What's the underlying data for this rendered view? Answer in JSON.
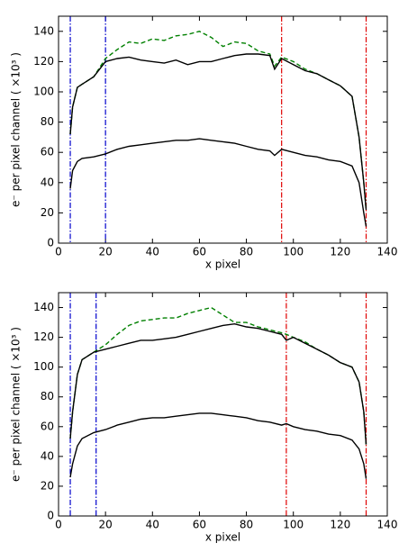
{
  "chart_data": [
    {
      "type": "line",
      "xlabel": "x pixel",
      "ylabel": "e⁻ per pixel channel ( ×10³ )",
      "x": [
        5,
        6,
        8,
        10,
        15,
        20,
        25,
        30,
        35,
        40,
        45,
        50,
        55,
        60,
        65,
        70,
        75,
        80,
        85,
        90,
        92,
        95,
        100,
        105,
        110,
        115,
        120,
        125,
        128,
        130,
        131
      ],
      "series": [
        {
          "color": "#008000",
          "dash": true,
          "values": [
            72,
            90,
            103,
            105,
            110,
            122,
            128,
            133,
            132,
            135,
            134,
            137,
            138,
            140,
            136,
            130,
            133,
            132,
            127,
            125,
            117,
            123,
            120,
            115,
            112,
            108,
            104,
            97,
            70,
            40,
            22
          ]
        },
        {
          "color": "#000000",
          "values": [
            72,
            90,
            103,
            105,
            110,
            120,
            122,
            123,
            121,
            120,
            119,
            121,
            118,
            120,
            120,
            122,
            124,
            125,
            125,
            124,
            115,
            122,
            118,
            114,
            112,
            108,
            104,
            97,
            70,
            40,
            22
          ]
        },
        {
          "color": "#000000",
          "values": [
            36,
            48,
            54,
            56,
            57,
            59,
            62,
            64,
            65,
            66,
            67,
            68,
            68,
            69,
            68,
            67,
            66,
            64,
            62,
            61,
            58,
            62,
            60,
            58,
            57,
            55,
            54,
            51,
            40,
            20,
            11
          ]
        }
      ],
      "vlines": [
        {
          "x": 5,
          "color": "#0000cc"
        },
        {
          "x": 20,
          "color": "#0000cc"
        },
        {
          "x": 95,
          "color": "#e00000"
        },
        {
          "x": 131,
          "color": "#e00000"
        }
      ],
      "xlim": [
        0,
        140
      ],
      "xticks": [
        0,
        20,
        40,
        60,
        80,
        100,
        120,
        140
      ],
      "ylim": [
        0,
        150
      ],
      "yticks": [
        0,
        20,
        40,
        60,
        80,
        100,
        120,
        140
      ]
    },
    {
      "type": "line",
      "xlabel": "x pixel",
      "ylabel": "e⁻ per pixel channel ( ×10³ )",
      "x": [
        5,
        6,
        8,
        10,
        15,
        20,
        25,
        30,
        35,
        40,
        45,
        50,
        55,
        60,
        65,
        70,
        75,
        80,
        85,
        90,
        95,
        97,
        100,
        105,
        110,
        115,
        120,
        125,
        128,
        130,
        131
      ],
      "series": [
        {
          "color": "#008000",
          "dash": true,
          "values": [
            52,
            70,
            95,
            105,
            110,
            115,
            122,
            128,
            131,
            132,
            133,
            133,
            136,
            138,
            140,
            135,
            130,
            130,
            127,
            125,
            123,
            122,
            120,
            117,
            112,
            108,
            103,
            100,
            90,
            70,
            48
          ]
        },
        {
          "color": "#000000",
          "values": [
            52,
            70,
            95,
            105,
            110,
            112,
            114,
            116,
            118,
            118,
            119,
            120,
            122,
            124,
            126,
            128,
            129,
            127,
            126,
            124,
            122,
            118,
            120,
            116,
            112,
            108,
            103,
            100,
            90,
            70,
            48
          ]
        },
        {
          "color": "#000000",
          "values": [
            26,
            35,
            47,
            52,
            56,
            58,
            61,
            63,
            65,
            66,
            66,
            67,
            68,
            69,
            69,
            68,
            67,
            66,
            64,
            63,
            61,
            62,
            60,
            58,
            57,
            55,
            54,
            51,
            45,
            35,
            25
          ]
        }
      ],
      "vlines": [
        {
          "x": 5,
          "color": "#0000cc"
        },
        {
          "x": 16,
          "color": "#0000cc"
        },
        {
          "x": 97,
          "color": "#e00000"
        },
        {
          "x": 131,
          "color": "#e00000"
        }
      ],
      "xlim": [
        0,
        140
      ],
      "xticks": [
        0,
        20,
        40,
        60,
        80,
        100,
        120,
        140
      ],
      "ylim": [
        0,
        150
      ],
      "yticks": [
        0,
        20,
        40,
        60,
        80,
        100,
        120,
        140
      ]
    }
  ]
}
